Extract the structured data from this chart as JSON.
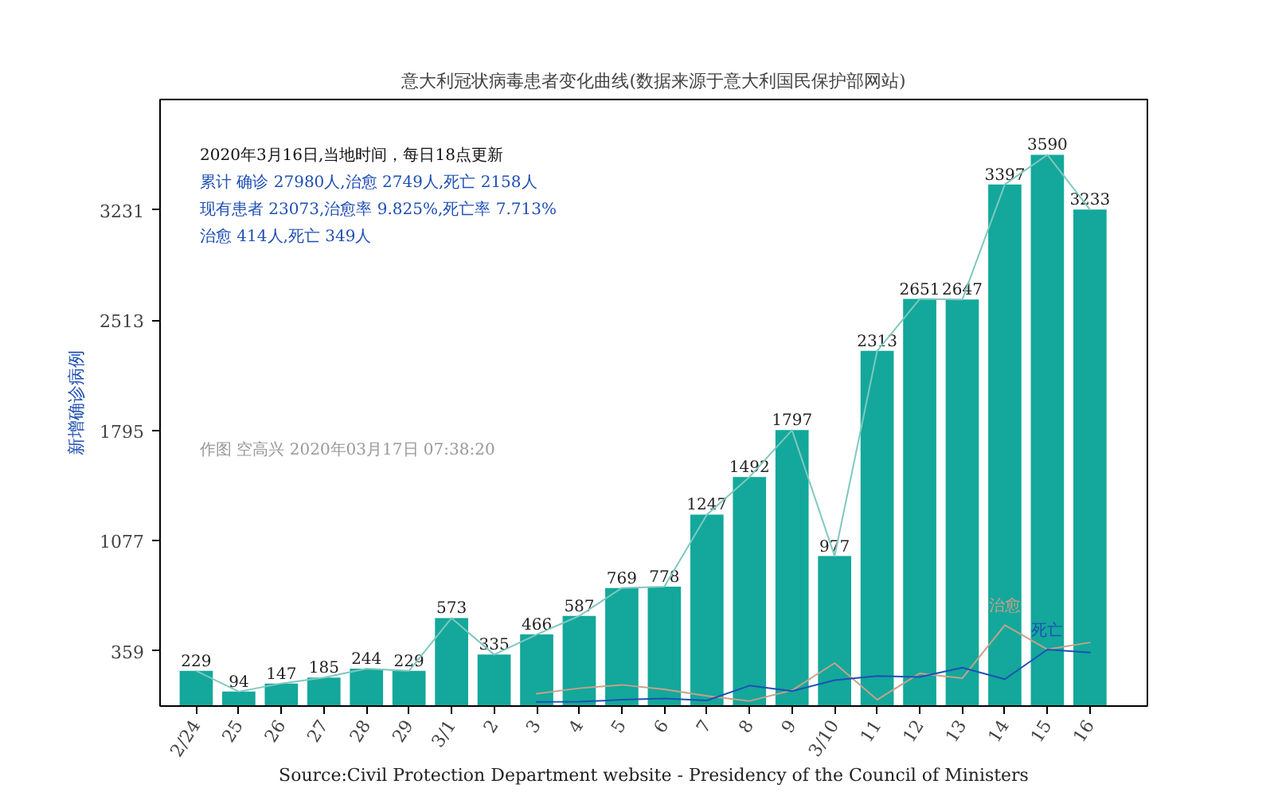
{
  "chart_data": {
    "type": "bar",
    "title": "意大利冠状病毒患者变化曲线(数据来源于意大利国民保护部网站)",
    "ylabel": "新增确诊病例",
    "categories": [
      "2/24",
      "25",
      "26",
      "27",
      "28",
      "29",
      "3/1",
      "2",
      "3",
      "4",
      "5",
      "6",
      "7",
      "8",
      "9",
      "3/10",
      "11",
      "12",
      "13",
      "14",
      "15",
      "16"
    ],
    "ylim": [
      0,
      3950
    ],
    "yticks": [
      359,
      1077,
      1795,
      2513,
      3231
    ],
    "grid": false,
    "series": [
      {
        "color": "#13a89b",
        "values": [
          229,
          94,
          147,
          185,
          244,
          229,
          573,
          335,
          466,
          587,
          769,
          778,
          1247,
          1492,
          1797,
          977,
          2313,
          2651,
          2647,
          3397,
          3590,
          3233
        ],
        "value_labels": [
          "229",
          "94",
          "147",
          "185",
          "244",
          "229",
          "573",
          "335",
          "466",
          "587",
          "769",
          "778",
          "1247",
          "1492",
          "1797",
          "977",
          "2313",
          "2651",
          "2647",
          "3397",
          "3590",
          "3233"
        ]
      },
      {
        "type": "line",
        "color": "#7fc8bf",
        "values": [
          229,
          94,
          147,
          185,
          244,
          229,
          573,
          335,
          466,
          587,
          769,
          778,
          1247,
          1492,
          1797,
          977,
          2313,
          2651,
          2647,
          3397,
          3590,
          3233
        ]
      },
      {
        "type": "line",
        "name": "治愈",
        "color": "#c8a08a",
        "values": [
          null,
          null,
          null,
          null,
          null,
          null,
          null,
          null,
          80,
          116,
          138,
          109,
          66,
          33,
          102,
          280,
          41,
          213,
          181,
          527,
          369,
          414
        ]
      },
      {
        "type": "line",
        "name": "死亡",
        "color": "#1f4fb4",
        "values": [
          null,
          null,
          null,
          null,
          null,
          null,
          null,
          null,
          27,
          28,
          41,
          49,
          36,
          133,
          97,
          168,
          196,
          189,
          250,
          175,
          368,
          349
        ]
      }
    ],
    "annotations": [
      "2020年3月16日,当地时间，每日18点更新",
      "累计 确诊 27980人,治愈 2749人,死亡 2158人",
      "现有患者 23073,治愈率 9.825%,死亡率 7.713%",
      "治愈 414人,死亡 349人",
      "作图 空高兴 2020年03月17日 07:38:20",
      "Source:Civil Protection Department website - Presidency of the Council of Ministers"
    ]
  }
}
